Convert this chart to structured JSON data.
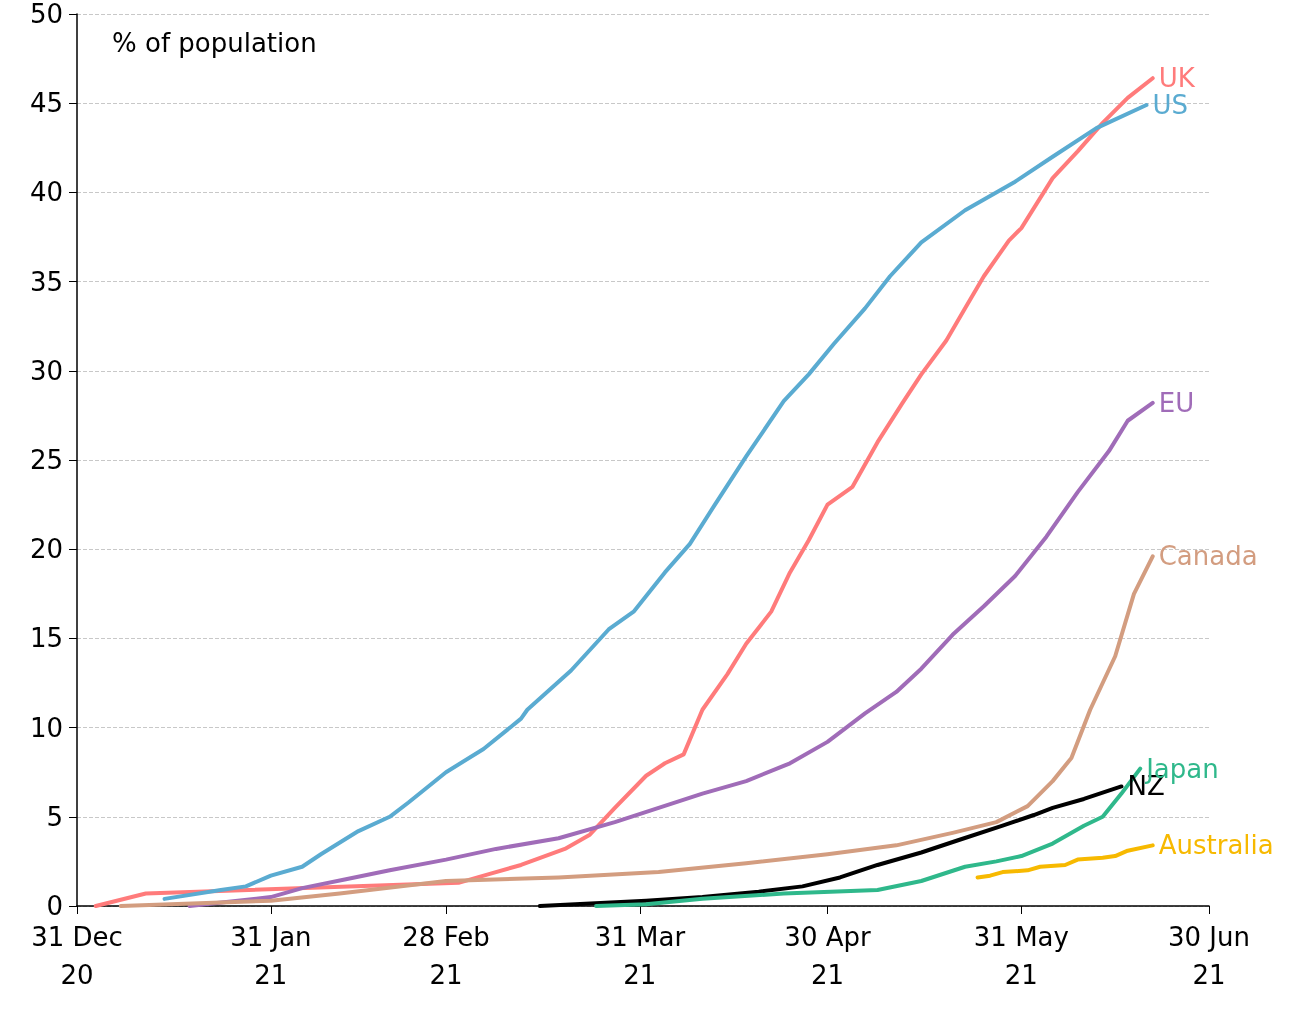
{
  "chart_data": {
    "type": "line",
    "ylabel": "% of population",
    "xlim": [
      "2020-12-31",
      "2021-06-30"
    ],
    "xticks": [
      {
        "value": "2020-12-31",
        "label": "31 Dec\n20"
      },
      {
        "value": "2021-01-31",
        "label": "31 Jan\n21"
      },
      {
        "value": "2021-02-28",
        "label": "28 Feb\n21"
      },
      {
        "value": "2021-03-31",
        "label": "31 Mar\n21"
      },
      {
        "value": "2021-04-30",
        "label": "30 Apr\n21"
      },
      {
        "value": "2021-05-31",
        "label": "31 May\n21"
      },
      {
        "value": "2021-06-30",
        "label": "30 Jun\n21"
      }
    ],
    "ylim": [
      0,
      50
    ],
    "yticks": [
      0,
      5,
      10,
      15,
      20,
      25,
      30,
      35,
      40,
      45,
      50
    ],
    "grid": "y",
    "legend": false,
    "marker": "none",
    "line_style": "solid",
    "series": [
      {
        "name": "UK",
        "color": "#ff7b7b",
        "x": [
          "2021-01-03",
          "2021-01-11",
          "2021-03-02",
          "2021-03-07",
          "2021-03-12",
          "2021-03-19",
          "2021-03-23",
          "2021-03-27",
          "2021-04-01",
          "2021-04-04",
          "2021-04-07",
          "2021-04-10",
          "2021-04-14",
          "2021-04-17",
          "2021-04-21",
          "2021-04-24",
          "2021-04-27",
          "2021-04-30",
          "2021-05-04",
          "2021-05-08",
          "2021-05-12",
          "2021-05-15",
          "2021-05-19",
          "2021-05-22",
          "2021-05-25",
          "2021-05-29",
          "2021-05-31",
          "2021-06-05",
          "2021-06-09",
          "2021-06-13",
          "2021-06-17",
          "2021-06-21"
        ],
        "values": [
          0,
          0.7,
          1.3,
          1.8,
          2.3,
          3.2,
          4.0,
          5.5,
          7.3,
          8.0,
          8.5,
          11.0,
          13.0,
          14.7,
          16.5,
          18.7,
          20.5,
          22.5,
          23.5,
          26.0,
          28.2,
          29.8,
          31.7,
          33.5,
          35.3,
          37.3,
          38.0,
          40.8,
          42.3,
          43.9,
          45.3,
          46.4
        ]
      },
      {
        "name": "US",
        "color": "#5aabd1",
        "x": [
          "2021-01-14",
          "2021-01-23",
          "2021-01-27",
          "2021-01-31",
          "2021-02-05",
          "2021-02-08",
          "2021-02-14",
          "2021-02-19",
          "2021-02-22",
          "2021-02-28",
          "2021-03-06",
          "2021-03-12",
          "2021-03-13",
          "2021-03-20",
          "2021-03-26",
          "2021-03-30",
          "2021-04-04",
          "2021-04-08",
          "2021-04-12",
          "2021-04-17",
          "2021-04-23",
          "2021-04-27",
          "2021-05-01",
          "2021-05-06",
          "2021-05-10",
          "2021-05-15",
          "2021-05-22",
          "2021-05-30",
          "2021-06-05",
          "2021-06-12",
          "2021-06-20"
        ],
        "values": [
          0.4,
          0.9,
          1.1,
          1.7,
          2.2,
          2.9,
          4.2,
          5.0,
          5.8,
          7.5,
          8.8,
          10.5,
          11.0,
          13.2,
          15.5,
          16.5,
          18.7,
          20.3,
          22.5,
          25.2,
          28.3,
          29.8,
          31.5,
          33.5,
          35.3,
          37.2,
          39.0,
          40.6,
          42.0,
          43.6,
          44.9
        ]
      },
      {
        "name": "EU",
        "color": "#a06cb8",
        "x": [
          "2021-01-18",
          "2021-01-31",
          "2021-02-05",
          "2021-02-12",
          "2021-02-19",
          "2021-02-28",
          "2021-03-08",
          "2021-03-18",
          "2021-03-27",
          "2021-04-03",
          "2021-04-10",
          "2021-04-17",
          "2021-04-24",
          "2021-04-30",
          "2021-05-06",
          "2021-05-11",
          "2021-05-15",
          "2021-05-20",
          "2021-05-25",
          "2021-05-30",
          "2021-06-04",
          "2021-06-09",
          "2021-06-14",
          "2021-06-17",
          "2021-06-21"
        ],
        "values": [
          0,
          0.5,
          1.0,
          1.5,
          2.0,
          2.6,
          3.2,
          3.8,
          4.7,
          5.5,
          6.3,
          7.0,
          8.0,
          9.2,
          10.8,
          12.0,
          13.3,
          15.2,
          16.8,
          18.5,
          20.7,
          23.2,
          25.5,
          27.2,
          28.2
        ]
      },
      {
        "name": "Canada",
        "color": "#d39d80",
        "x": [
          "2021-01-07",
          "2021-01-31",
          "2021-02-11",
          "2021-02-28",
          "2021-03-18",
          "2021-04-03",
          "2021-04-17",
          "2021-04-30",
          "2021-05-11",
          "2021-05-20",
          "2021-05-27",
          "2021-06-01",
          "2021-06-05",
          "2021-06-08",
          "2021-06-11",
          "2021-06-15",
          "2021-06-18",
          "2021-06-21"
        ],
        "values": [
          0,
          0.3,
          0.7,
          1.4,
          1.6,
          1.9,
          2.4,
          2.9,
          3.4,
          4.1,
          4.7,
          5.6,
          7.0,
          8.3,
          11.0,
          14.0,
          17.5,
          19.6
        ]
      },
      {
        "name": "NZ",
        "color": "#000000",
        "x": [
          "2021-03-15",
          "2021-04-01",
          "2021-04-10",
          "2021-04-19",
          "2021-04-26",
          "2021-05-02",
          "2021-05-08",
          "2021-05-15",
          "2021-05-21",
          "2021-05-28",
          "2021-06-02",
          "2021-06-05",
          "2021-06-10",
          "2021-06-16"
        ],
        "values": [
          0,
          0.3,
          0.5,
          0.8,
          1.1,
          1.6,
          2.3,
          3.0,
          3.7,
          4.5,
          5.1,
          5.5,
          6.0,
          6.7
        ]
      },
      {
        "name": "Japan",
        "color": "#2fb88b",
        "x": [
          "2021-03-24",
          "2021-04-01",
          "2021-04-10",
          "2021-04-23",
          "2021-05-08",
          "2021-05-15",
          "2021-05-22",
          "2021-05-27",
          "2021-05-31",
          "2021-06-05",
          "2021-06-10",
          "2021-06-13",
          "2021-06-16",
          "2021-06-19"
        ],
        "values": [
          0,
          0.1,
          0.4,
          0.7,
          0.9,
          1.4,
          2.2,
          2.5,
          2.8,
          3.5,
          4.5,
          5.0,
          6.3,
          7.7
        ]
      },
      {
        "name": "Australia",
        "color": "#f7b900",
        "x": [
          "2021-05-24",
          "2021-05-26",
          "2021-05-28",
          "2021-06-01",
          "2021-06-03",
          "2021-06-07",
          "2021-06-09",
          "2021-06-13",
          "2021-06-15",
          "2021-06-17",
          "2021-06-21"
        ],
        "values": [
          1.6,
          1.7,
          1.9,
          2.0,
          2.2,
          2.3,
          2.6,
          2.7,
          2.8,
          3.1,
          3.4
        ]
      }
    ]
  }
}
